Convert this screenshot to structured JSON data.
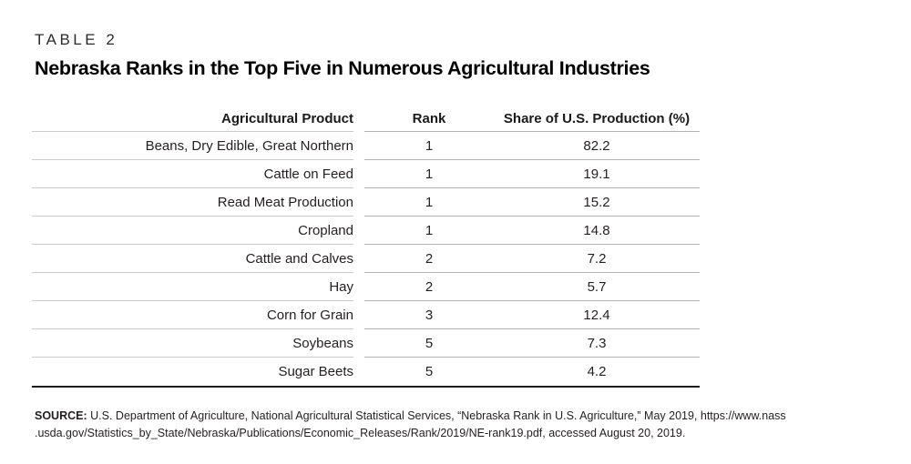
{
  "table_label": "TABLE 2",
  "title": "Nebraska Ranks in the Top Five in Numerous Agricultural Industries",
  "table": {
    "columns": [
      "Agricultural Product",
      "Rank",
      "Share of U.S. Production (%)"
    ],
    "rows": [
      {
        "product": "Beans, Dry Edible, Great Northern",
        "rank": "1",
        "share": "82.2"
      },
      {
        "product": "Cattle on Feed",
        "rank": "1",
        "share": "19.1"
      },
      {
        "product": "Read Meat Production",
        "rank": "1",
        "share": "15.2"
      },
      {
        "product": "Cropland",
        "rank": "1",
        "share": "14.8"
      },
      {
        "product": "Cattle and Calves",
        "rank": "2",
        "share": "7.2"
      },
      {
        "product": "Hay",
        "rank": "2",
        "share": "5.7"
      },
      {
        "product": "Corn for Grain",
        "rank": "3",
        "share": "12.4"
      },
      {
        "product": "Soybeans",
        "rank": "5",
        "share": "7.3"
      },
      {
        "product": "Sugar Beets",
        "rank": "5",
        "share": "4.2"
      }
    ]
  },
  "source": {
    "label": "SOURCE:",
    "line1": "U.S. Department of Agriculture, National Agricultural Statistical Services, “Nebraska Rank in U.S. Agriculture,” May 2019, https://www.nass",
    "line2": ".usda.gov/Statistics_by_State/Nebraska/Publications/Economic_Releases/Rank/2019/NE-rank19.pdf, accessed August 20, 2019."
  },
  "colors": {
    "text": "#231f20",
    "rule_light": "#cbcbcb",
    "rule_medium": "#b2b2b2",
    "bottom_border": "#1c1c1c",
    "background": "#ffffff"
  }
}
